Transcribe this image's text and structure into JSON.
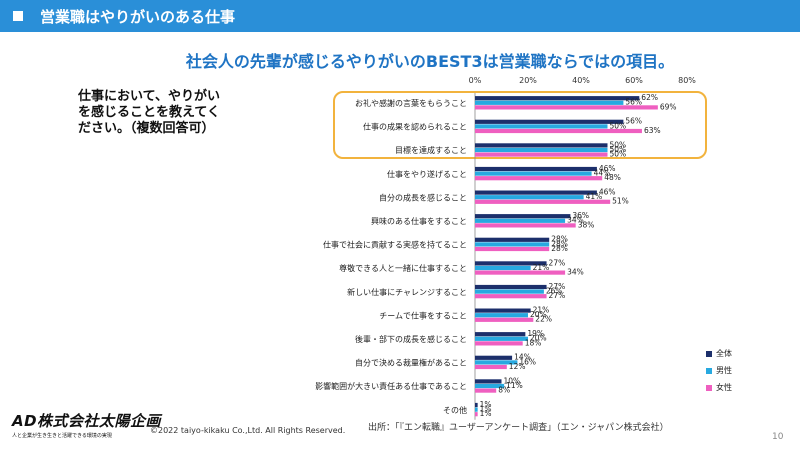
{
  "header": {
    "title": "営業職はやりがいのある仕事"
  },
  "subtitle": "社会人の先輩が感じるやりがいのBEST3は営業職ならではの項目。",
  "question": "仕事において、やりがいを感じることを教えてください。（複数回答可）",
  "footer": {
    "logo_text": "AD株式会社太陽企画",
    "logo_tagline": "人と企業が生き生きと活躍できる環境の実現",
    "copyright": "©2022 taiyo-kikaku Co.,Ltd. All Rights Reserved.",
    "source": "出所：「『エン転職』ユーザーアンケート調査」（エン・ジャパン株式会社）",
    "page_number": "10"
  },
  "colors": {
    "overall": "#1c2f6b",
    "male": "#27a9e0",
    "female": "#ef5fc0",
    "highlight": "#f2b33d",
    "header": "#2a8fd8"
  },
  "chart_data": {
    "type": "bar",
    "orientation": "horizontal",
    "xlim": [
      0,
      80
    ],
    "ticks": [
      "0%",
      "20%",
      "40%",
      "60%",
      "80%"
    ],
    "categories": [
      "お礼や感謝の言葉をもらうこと",
      "仕事の成果を認められること",
      "目標を達成すること",
      "仕事をやり遂げること",
      "自分の成長を感じること",
      "興味のある仕事をすること",
      "仕事で社会に貢献する実感を持てること",
      "尊敬できる人と一緒に仕事すること",
      "新しい仕事にチャレンジすること",
      "チームで仕事をすること",
      "後輩・部下の成長を感じること",
      "自分で決める裁量権があること",
      "影響範囲が大きい責任ある仕事であること",
      "その他"
    ],
    "series": [
      {
        "name": "全体",
        "values": [
          62,
          56,
          50,
          46,
          46,
          36,
          28,
          27,
          27,
          21,
          19,
          14,
          10,
          1
        ],
        "labels": [
          "62%",
          "56%",
          "50%",
          "46%",
          "46%",
          "36%",
          "28%",
          "27%",
          "27%",
          "21%",
          "19%",
          "14%",
          "10%",
          "1%"
        ]
      },
      {
        "name": "男性",
        "values": [
          56,
          50,
          50,
          44,
          41,
          34,
          28,
          21,
          26,
          20,
          20,
          16,
          11,
          1
        ],
        "labels": [
          "56%",
          "50%",
          "50%",
          "44%",
          "41%",
          "34%",
          "28%",
          "21%",
          "26%",
          "20%",
          "20%",
          "16%",
          "11%",
          "1%"
        ]
      },
      {
        "name": "女性",
        "values": [
          69,
          63,
          50,
          48,
          51,
          38,
          28,
          34,
          27,
          22,
          18,
          12,
          8,
          1
        ],
        "labels": [
          "69%",
          "63%",
          "50%",
          "48%",
          "51%",
          "38%",
          "28%",
          "34%",
          "27%",
          "22%",
          "18%",
          "12%",
          "8%",
          "1%"
        ]
      }
    ],
    "legend_position": "bottom-right",
    "highlighted_top": 3
  }
}
